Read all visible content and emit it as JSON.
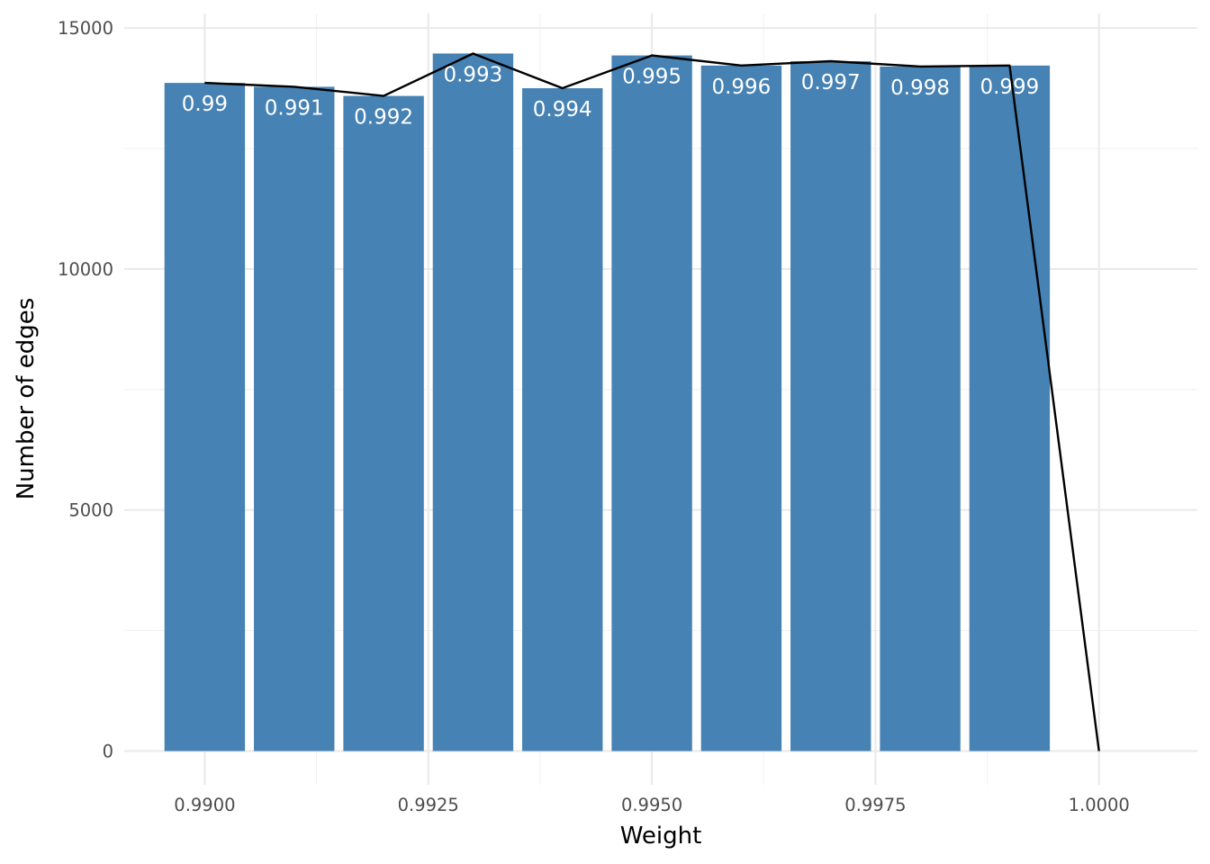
{
  "chart_data": {
    "type": "bar",
    "title": "",
    "xlabel": "Weight",
    "ylabel": "Number of edges",
    "xlim": [
      0.9891,
      1.0011
    ],
    "ylim": [
      -700,
      15300
    ],
    "x_ticks": [
      0.99,
      0.9925,
      0.995,
      0.9975,
      1.0
    ],
    "x_tick_labels": [
      "0.9900",
      "0.9925",
      "0.9950",
      "0.9975",
      "1.0000"
    ],
    "x_minor_ticks": [
      0.99125,
      0.99375,
      0.99625,
      0.99875
    ],
    "y_ticks": [
      0,
      5000,
      10000,
      15000
    ],
    "y_tick_labels": [
      "0",
      "5000",
      "10000",
      "15000"
    ],
    "y_minor_ticks": [
      2500,
      7500,
      12500
    ],
    "grid": true,
    "bar_color": "#4682b4",
    "bar_width": 0.0009,
    "bars": {
      "x": [
        0.99,
        0.991,
        0.992,
        0.993,
        0.994,
        0.995,
        0.996,
        0.997,
        0.998,
        0.999
      ],
      "values": [
        13860,
        13780,
        13590,
        14470,
        13750,
        14430,
        14220,
        14310,
        14200,
        14220
      ],
      "labels": [
        "0.99",
        "0.991",
        "0.992",
        "0.993",
        "0.994",
        "0.995",
        "0.996",
        "0.997",
        "0.998",
        "0.999"
      ]
    },
    "line": {
      "color": "#000000",
      "x": [
        0.99,
        0.991,
        0.992,
        0.993,
        0.994,
        0.995,
        0.996,
        0.997,
        0.998,
        0.999,
        1.0
      ],
      "values": [
        13860,
        13780,
        13590,
        14470,
        13750,
        14430,
        14220,
        14310,
        14200,
        14220,
        0
      ]
    }
  }
}
